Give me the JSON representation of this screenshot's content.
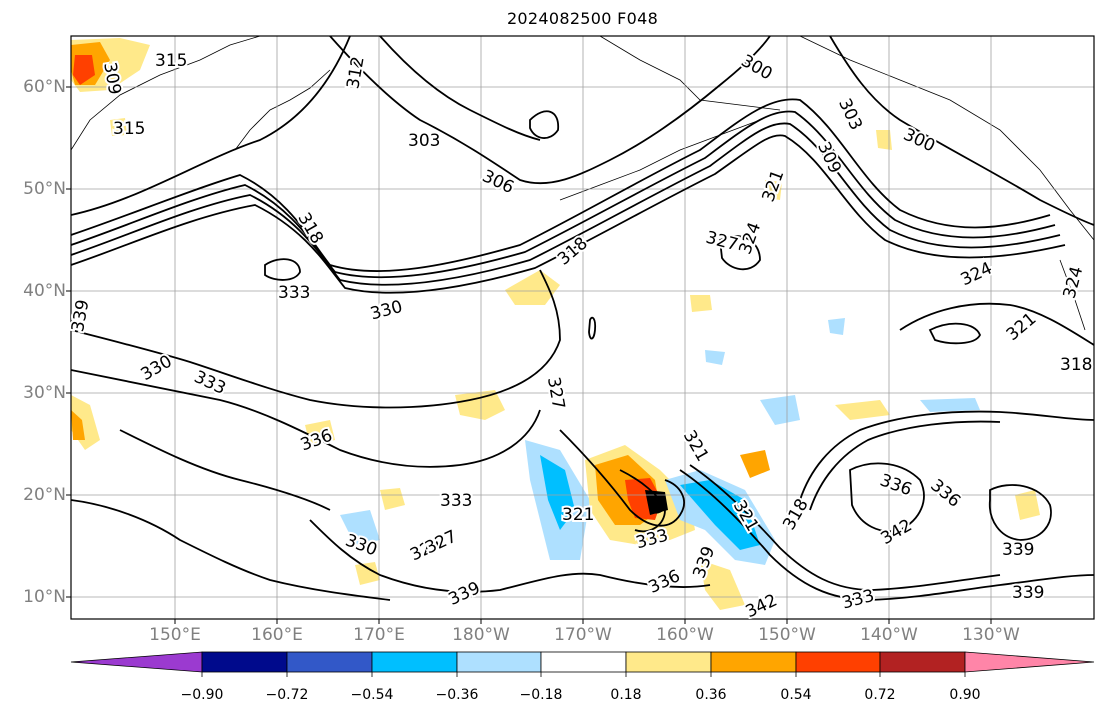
{
  "title": "2024082500 F048",
  "map": {
    "lat_labels": [
      "60°N",
      "50°N",
      "40°N",
      "30°N",
      "20°N",
      "10°N"
    ],
    "lon_labels": [
      "150°E",
      "160°E",
      "170°E",
      "180°W",
      "170°W",
      "160°W",
      "150°W",
      "140°W",
      "130°W"
    ],
    "contour_labels": [
      "315",
      "309",
      "312",
      "315",
      "303",
      "306",
      "300",
      "303",
      "309",
      "300",
      "318",
      "318",
      "333",
      "330",
      "339",
      "330",
      "333",
      "336",
      "333",
      "327",
      "321",
      "327",
      "324",
      "321",
      "324",
      "321",
      "318",
      "324",
      "321",
      "330",
      "324",
      "327",
      "333",
      "336",
      "339",
      "339",
      "318",
      "336",
      "336",
      "342",
      "333",
      "342",
      "339",
      "339",
      "321"
    ],
    "colorbar": {
      "ticks": [
        "−0.90",
        "−0.72",
        "−0.54",
        "−0.36",
        "−0.18",
        "0.18",
        "0.36",
        "0.54",
        "0.72",
        "0.90"
      ],
      "colors": [
        "#9b3ad0",
        "#000a8c",
        "#3258c8",
        "#00bfff",
        "#aee0ff",
        "#ffffff",
        "#ffe98a",
        "#ffa500",
        "#ff4000",
        "#b22222",
        "#ff85a8"
      ]
    }
  }
}
